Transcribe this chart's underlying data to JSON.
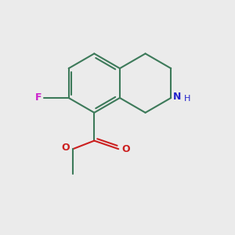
{
  "background_color": "#ebebeb",
  "bond_color": "#3d7a5a",
  "bond_width": 1.5,
  "n_color": "#2424cc",
  "o_color": "#cc2020",
  "f_color": "#cc20cc",
  "figsize": [
    3.0,
    3.0
  ],
  "dpi": 100,
  "xlim": [
    0,
    10
  ],
  "ylim": [
    0,
    10
  ]
}
